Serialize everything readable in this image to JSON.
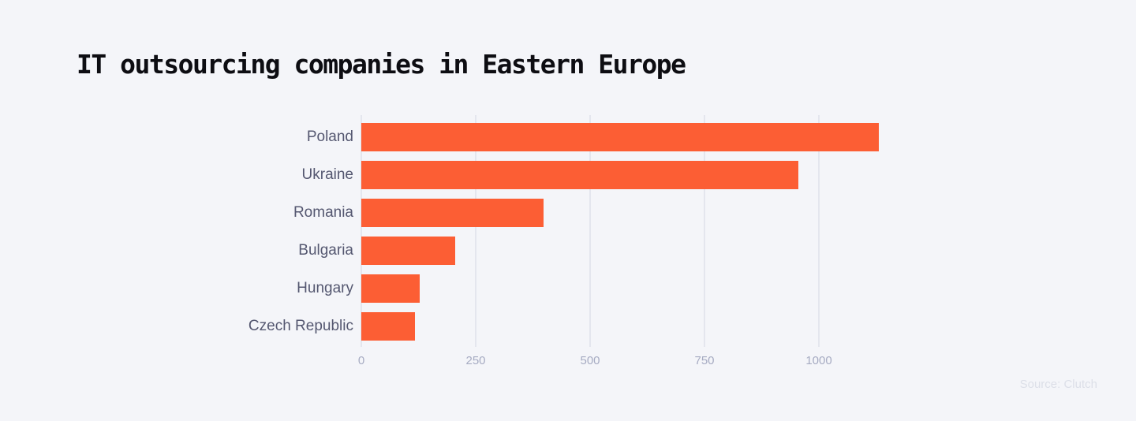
{
  "title": "IT outsourcing companies in Eastern Europe",
  "source": "Source: Clutch",
  "colors": {
    "bar": "#fc5e34",
    "background": "#f4f5f9",
    "grid": "#e4e6ee"
  },
  "chart_data": {
    "type": "bar",
    "orientation": "horizontal",
    "title": "IT outsourcing companies in Eastern Europe",
    "categories": [
      "Poland",
      "Ukraine",
      "Romania",
      "Bulgaria",
      "Hungary",
      "Czech Republic"
    ],
    "values": [
      1131,
      955,
      398,
      205,
      128,
      117
    ],
    "xlabel": "",
    "ylabel": "",
    "xlim": [
      0,
      1150
    ],
    "xticks": [
      "0",
      "250",
      "500",
      "750",
      "1000"
    ],
    "grid": true,
    "legend": "none",
    "annotations": [
      "Source: Clutch"
    ]
  }
}
